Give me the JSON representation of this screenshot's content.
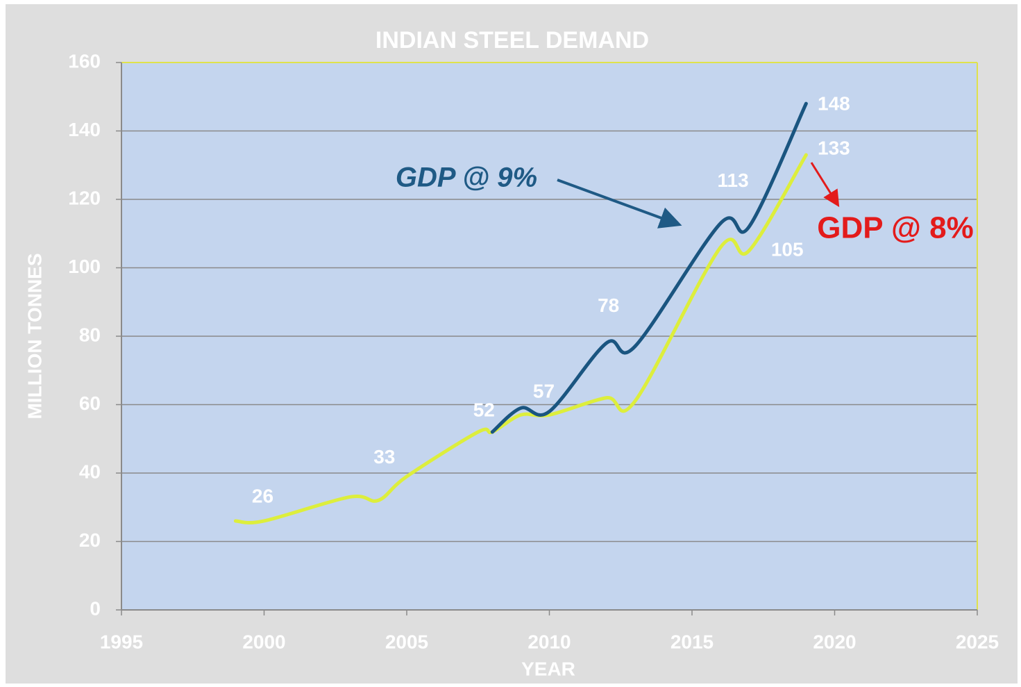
{
  "chart_data": {
    "type": "line",
    "title": "INDIAN STEEL DEMAND",
    "x_label": "YEAR",
    "y_label": "MILLION TONNES",
    "x": [
      1999,
      2000,
      2003,
      2004,
      2005,
      2007.5,
      2008,
      2009,
      2010,
      2012,
      2013,
      2016,
      2017,
      2019
    ],
    "series": [
      {
        "name": "GDP @ 8%",
        "color": "#ddee3c",
        "values": [
          26,
          26,
          33,
          32,
          39,
          52,
          52,
          57,
          57,
          62,
          61,
          106,
          105,
          133
        ]
      },
      {
        "name": "GDP @ 9%",
        "color": "#1a5580",
        "values": [
          null,
          null,
          null,
          null,
          null,
          null,
          52,
          59,
          58,
          78,
          77,
          113,
          112,
          148
        ]
      }
    ],
    "annotation_colors": [
      "#e31b1b",
      "#1f5a85"
    ],
    "xlim": [
      1995,
      2025
    ],
    "xticks": [
      1995,
      2000,
      2005,
      2010,
      2015,
      2020,
      2025
    ],
    "ylim": [
      0,
      160
    ],
    "yticks": [
      0,
      20,
      40,
      60,
      80,
      100,
      120,
      140,
      160
    ],
    "grid": true
  }
}
